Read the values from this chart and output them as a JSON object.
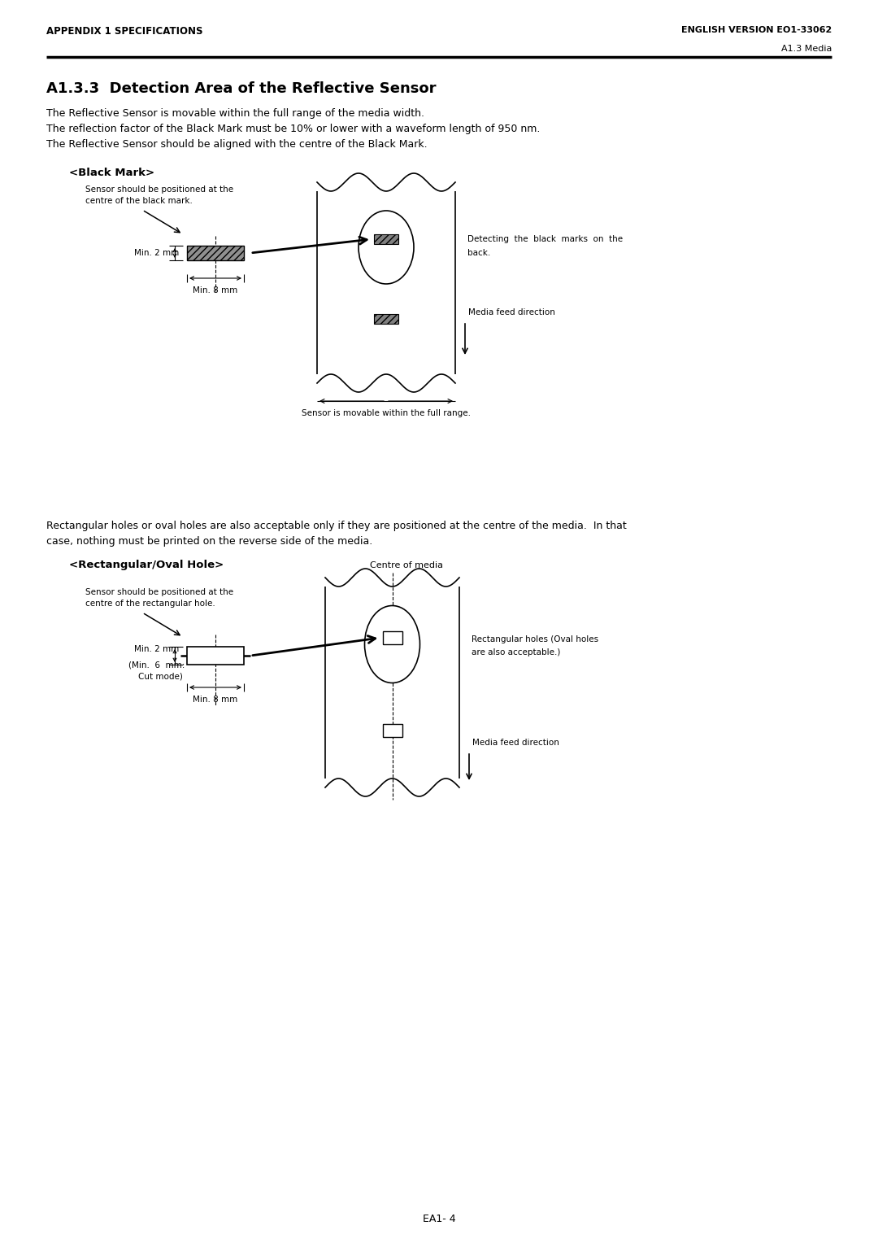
{
  "header_left": "APPENDIX 1 SPECIFICATIONS",
  "header_right": "ENGLISH VERSION EO1-33062",
  "subheader_right": "A1.3 Media",
  "section_title": "A1.3.3  Detection Area of the Reflective Sensor",
  "body_text": [
    "The Reflective Sensor is movable within the full range of the media width.",
    "The reflection factor of the Black Mark must be 10% or lower with a waveform length of 950 nm.",
    "The Reflective Sensor should be aligned with the centre of the Black Mark."
  ],
  "black_mark_title": "<Black Mark>",
  "bm_label1": "Sensor should be positioned at the",
  "bm_label2": "centre of the black mark.",
  "bm_min2mm": "Min. 2 mm",
  "bm_min8mm": "Min. 8 mm",
  "bm_back_label1": "Detecting  the  black  marks  on  the",
  "bm_back_label2": "back.",
  "bm_sensor_label": "Sensor is movable within the full range.",
  "bm_feed": "Media feed direction",
  "rect_oval_title": "<Rectangular/Oval Hole>",
  "ro_label1": "Sensor should be positioned at the",
  "ro_label2": "centre of the rectangular hole.",
  "ro_min2mm": "Min. 2 mm",
  "ro_min6mm": "(Min.  6  mm:",
  "ro_cut": "Cut mode)",
  "ro_min8mm": "Min. 8 mm",
  "ro_centre": "Centre of media",
  "ro_holes1": "Rectangular holes (Oval holes",
  "ro_holes2": "are also acceptable.)",
  "ro_feed": "Media feed direction",
  "middle_text1": "Rectangular holes or oval holes are also acceptable only if they are positioned at the centre of the media.  In that",
  "middle_text2": "case, nothing must be printed on the reverse side of the media.",
  "footer": "EA1- 4",
  "bg_color": "#ffffff",
  "text_color": "#000000"
}
